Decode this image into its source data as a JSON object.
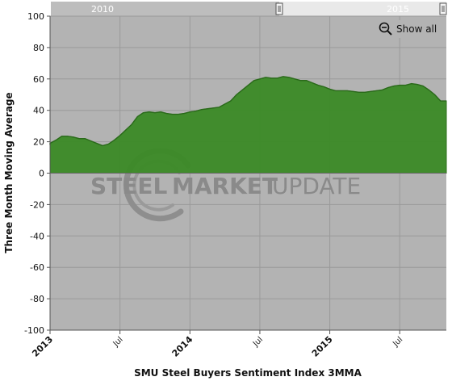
{
  "chart_data": {
    "type": "area",
    "title": "",
    "xlabel": "SMU Steel Buyers Sentiment Index 3MMA",
    "ylabel": "Three Month Moving Average",
    "ylim": [
      -100,
      100
    ],
    "yticks": [
      100,
      80,
      60,
      40,
      20,
      0,
      -20,
      -40,
      -60,
      -80,
      -100
    ],
    "xlim": [
      0,
      34
    ],
    "xticks": [
      {
        "x": 0,
        "label": "2013",
        "major": true
      },
      {
        "x": 6,
        "label": "Jul",
        "major": false
      },
      {
        "x": 12,
        "label": "2014",
        "major": true
      },
      {
        "x": 18,
        "label": "Jul",
        "major": false
      },
      {
        "x": 24,
        "label": "2015",
        "major": true
      },
      {
        "x": 30,
        "label": "Jul",
        "major": false
      }
    ],
    "grid": true,
    "series": [
      {
        "name": "",
        "color": "#3b8a26",
        "x": [
          -0.2,
          0,
          0.5,
          1,
          1.5,
          2,
          2.5,
          3,
          3.5,
          4,
          4.5,
          5,
          5.5,
          6,
          6.5,
          7,
          7.5,
          8,
          8.5,
          9,
          9.5,
          10,
          10.5,
          11,
          11.5,
          12,
          12.5,
          13,
          13.5,
          14,
          14.5,
          15,
          15.5,
          16,
          16.5,
          17,
          17.5,
          18,
          18.5,
          19,
          19.5,
          20,
          20.5,
          21,
          21.5,
          22,
          22.5,
          23,
          23.5,
          24,
          24.5,
          25,
          25.5,
          26,
          26.5,
          27,
          27.5,
          28,
          28.5,
          29,
          29.5,
          30,
          30.5,
          31,
          31.5,
          32,
          32.5,
          33,
          33.5,
          34
        ],
        "values": [
          18,
          19,
          21,
          23.5,
          23.5,
          23,
          22,
          22,
          20.5,
          19,
          17.5,
          18.5,
          21,
          24,
          27.5,
          31,
          36,
          38.5,
          39,
          38.5,
          39,
          38,
          37.5,
          37.5,
          38,
          39,
          39.5,
          40.5,
          41,
          41.5,
          42,
          44,
          46,
          50,
          53,
          56,
          59,
          60,
          61,
          60.5,
          60.5,
          61.5,
          61,
          60,
          59,
          59,
          57.5,
          56,
          55,
          53.5,
          52.5,
          52.5,
          52.5,
          52,
          51.5,
          51.5,
          52,
          52.5,
          53,
          54.5,
          55.5,
          56,
          56,
          57,
          56.5,
          55.5,
          53,
          50,
          46,
          46
        ]
      }
    ]
  },
  "navigator": {
    "labels": [
      {
        "label": "2010",
        "x": 127
      },
      {
        "label": "2015",
        "x": 493
      }
    ]
  },
  "controls": {
    "show_all_label": "Show all",
    "zoom_icon": "zoom-out-icon"
  },
  "watermark": {
    "bold_text": "STEEL",
    "mid_text": "MARKET",
    "light_text": "UPDATE"
  }
}
